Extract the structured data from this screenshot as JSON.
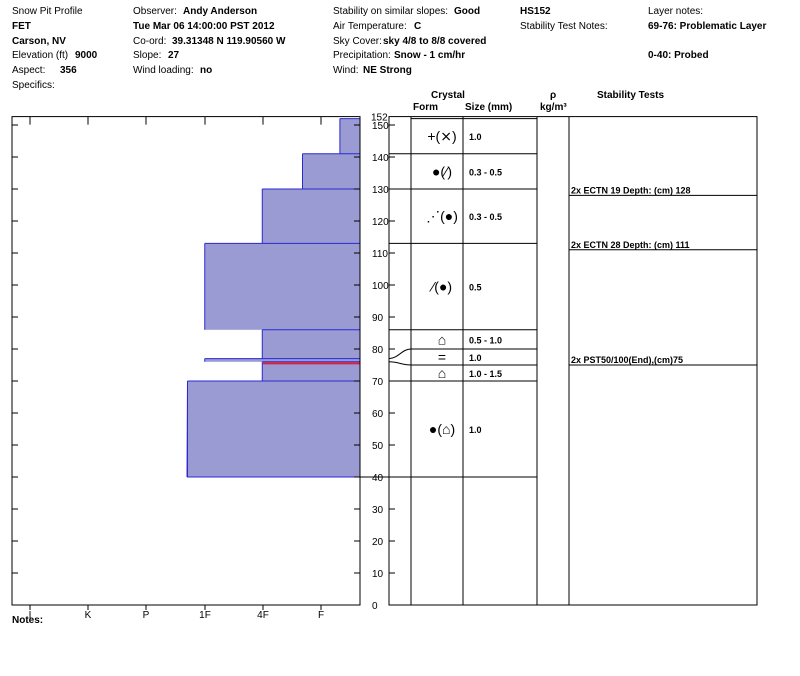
{
  "header": {
    "title": "Snow Pit Profile",
    "site": "FET",
    "location": "Carson, NV",
    "elevation_label": "Elevation (ft)",
    "elevation": "9000",
    "aspect_label": "Aspect:",
    "aspect": "356",
    "specifics_label": "Specifics:",
    "observer_label": "Observer:",
    "observer": "Andy Anderson",
    "date": "Tue Mar 06 14:00:00 PST 2012",
    "coord_label": "Co-ord:",
    "coord": "39.31348 N 119.90560 W",
    "slope_label": "Slope:",
    "slope": "27",
    "wind_loading_label": "Wind loading:",
    "wind_loading": "no",
    "stability_label": "Stability on similar slopes:",
    "stability": "Good",
    "air_temp_label": "Air Temperature:",
    "air_temp": "C",
    "sky_label": "Sky Cover:",
    "sky": "sky 4/8 to 8/8 covered",
    "precip_label": "Precipitation:",
    "precip": "Snow - 1 cm/hr",
    "wind_label": "Wind:",
    "wind": "NE Strong",
    "hs": "HS152",
    "stability_test_notes_label": "Stability Test Notes:",
    "layer_notes_label": "Layer notes:",
    "layer_note_1": "69-76: Problematic Layer",
    "layer_note_2": "0-40: Probed"
  },
  "columns": {
    "crystal": "Crystal",
    "form": "Form",
    "size": "Size (mm)",
    "rho": "ρ",
    "rho_unit": "kg/m³",
    "stability_tests": "Stability Tests"
  },
  "notes_label": "Notes:",
  "colors": {
    "hardness_fill": "#9b9bd4",
    "hardness_edge": "#2a2ad0",
    "weak_layer": "#e0203a"
  },
  "chart_data": {
    "type": "hardness-profile",
    "y_axis": {
      "min": 0,
      "max": 152,
      "ticks": [
        0,
        10,
        20,
        30,
        40,
        50,
        60,
        70,
        80,
        90,
        100,
        110,
        120,
        130,
        140,
        150
      ],
      "top_label": "152"
    },
    "hardness_scale": [
      "I",
      "K",
      "P",
      "1F",
      "4F",
      "F"
    ],
    "layers": [
      {
        "top": 152,
        "bottom": 141,
        "hardness": 0.35
      },
      {
        "top": 141,
        "bottom": 130,
        "hardness": 1.0
      },
      {
        "top": 130,
        "bottom": 113,
        "hardness": 1.7
      },
      {
        "top": 113,
        "bottom": 86,
        "hardness": 2.7
      },
      {
        "top": 86,
        "bottom": 77,
        "hardness": 1.7
      },
      {
        "top": 77,
        "bottom": 76,
        "hardness": 2.7
      },
      {
        "top": 76,
        "bottom": 70,
        "hardness": 1.7
      },
      {
        "top": 70,
        "bottom": 40,
        "hardness": 3.0
      }
    ],
    "weak_layer_depth": 75.5,
    "crystal_layers": [
      {
        "top": 152,
        "bottom": 141,
        "form": "+(⨯)",
        "size": "1.0"
      },
      {
        "top": 141,
        "bottom": 130,
        "form": "●(⁄)",
        "size": "0.3 - 0.5"
      },
      {
        "top": 130,
        "bottom": 113,
        "form": "⋰(●)",
        "size": "0.3 - 0.5"
      },
      {
        "top": 113,
        "bottom": 86,
        "form": "⁄(●)",
        "size": "0.5"
      },
      {
        "top": 86,
        "bottom": 80,
        "form": "⌂",
        "size": "0.5 - 1.0"
      },
      {
        "top": 80,
        "bottom": 75,
        "form": "=",
        "size": "1.0"
      },
      {
        "top": 75,
        "bottom": 70,
        "form": "⌂",
        "size": "1.0 - 1.5"
      },
      {
        "top": 70,
        "bottom": 40,
        "form": "●(⌂)",
        "size": "1.0"
      }
    ],
    "stability_tests": [
      {
        "depth": 128,
        "text": "2x ECTN 19  Depth: (cm) 128"
      },
      {
        "depth": 111,
        "text": "2x ECTN 28  Depth: (cm) 111"
      },
      {
        "depth": 75,
        "text": "2x PST50/100(End),(cm)75"
      }
    ]
  }
}
